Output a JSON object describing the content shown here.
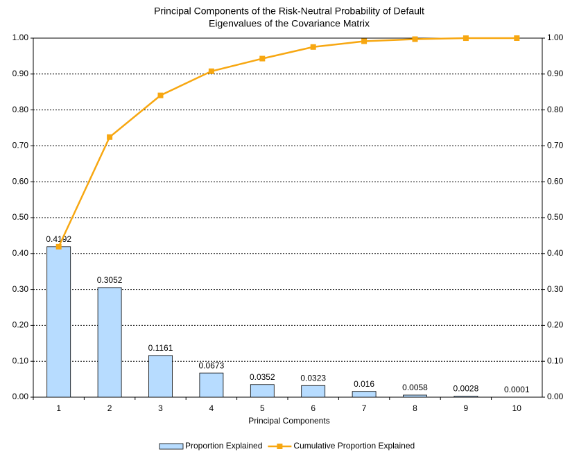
{
  "chart_data": {
    "type": "bar",
    "title": "Principal Components of the Risk-Neutral Probability of Default",
    "subtitle": "Eigenvalues of the Covariance Matrix",
    "x_label": "Principal Components",
    "categories": [
      "1",
      "2",
      "3",
      "4",
      "5",
      "6",
      "7",
      "8",
      "9",
      "10"
    ],
    "series": [
      {
        "name": "Proportion Explained",
        "type": "bar",
        "color": "#b7dcff",
        "values": [
          0.4192,
          0.3052,
          0.1161,
          0.0673,
          0.0352,
          0.0323,
          0.016,
          0.0058,
          0.0028,
          0.0001
        ]
      },
      {
        "name": "Cumulative Proportion Explained",
        "type": "line",
        "color": "#f7a711",
        "axis": "y2",
        "values": [
          0.4192,
          0.7244,
          0.8405,
          0.9078,
          0.943,
          0.9753,
          0.9913,
          0.9971,
          0.9999,
          1.0
        ]
      }
    ],
    "ylim": [
      0,
      1
    ],
    "yticks": [
      {
        "value": 0,
        "label": "0.00"
      },
      {
        "value": 0.1,
        "label": "0.10"
      },
      {
        "value": 0.2,
        "label": "0.20"
      },
      {
        "value": 0.3,
        "label": "0.30"
      },
      {
        "value": 0.4,
        "label": "0.40"
      },
      {
        "value": 0.5,
        "label": "0.50"
      },
      {
        "value": 0.6,
        "label": "0.60"
      },
      {
        "value": 0.7,
        "label": "0.70"
      },
      {
        "value": 0.8,
        "label": "0.80"
      },
      {
        "value": 0.9,
        "label": "0.90"
      },
      {
        "value": 1,
        "label": "1.00"
      }
    ],
    "y2lim": [
      0,
      1
    ],
    "y2ticks": [
      {
        "value": 0,
        "label": "0.00"
      },
      {
        "value": 0.1,
        "label": "0.10"
      },
      {
        "value": 0.2,
        "label": "0.20"
      },
      {
        "value": 0.3,
        "label": "0.30"
      },
      {
        "value": 0.4,
        "label": "0.40"
      },
      {
        "value": 0.5,
        "label": "0.50"
      },
      {
        "value": 0.6,
        "label": "0.60"
      },
      {
        "value": 0.7,
        "label": "0.70"
      },
      {
        "value": 0.8,
        "label": "0.80"
      },
      {
        "value": 0.9,
        "label": "0.90"
      },
      {
        "value": 1,
        "label": "1.00"
      }
    ],
    "grid": true,
    "legend": "bottom"
  }
}
